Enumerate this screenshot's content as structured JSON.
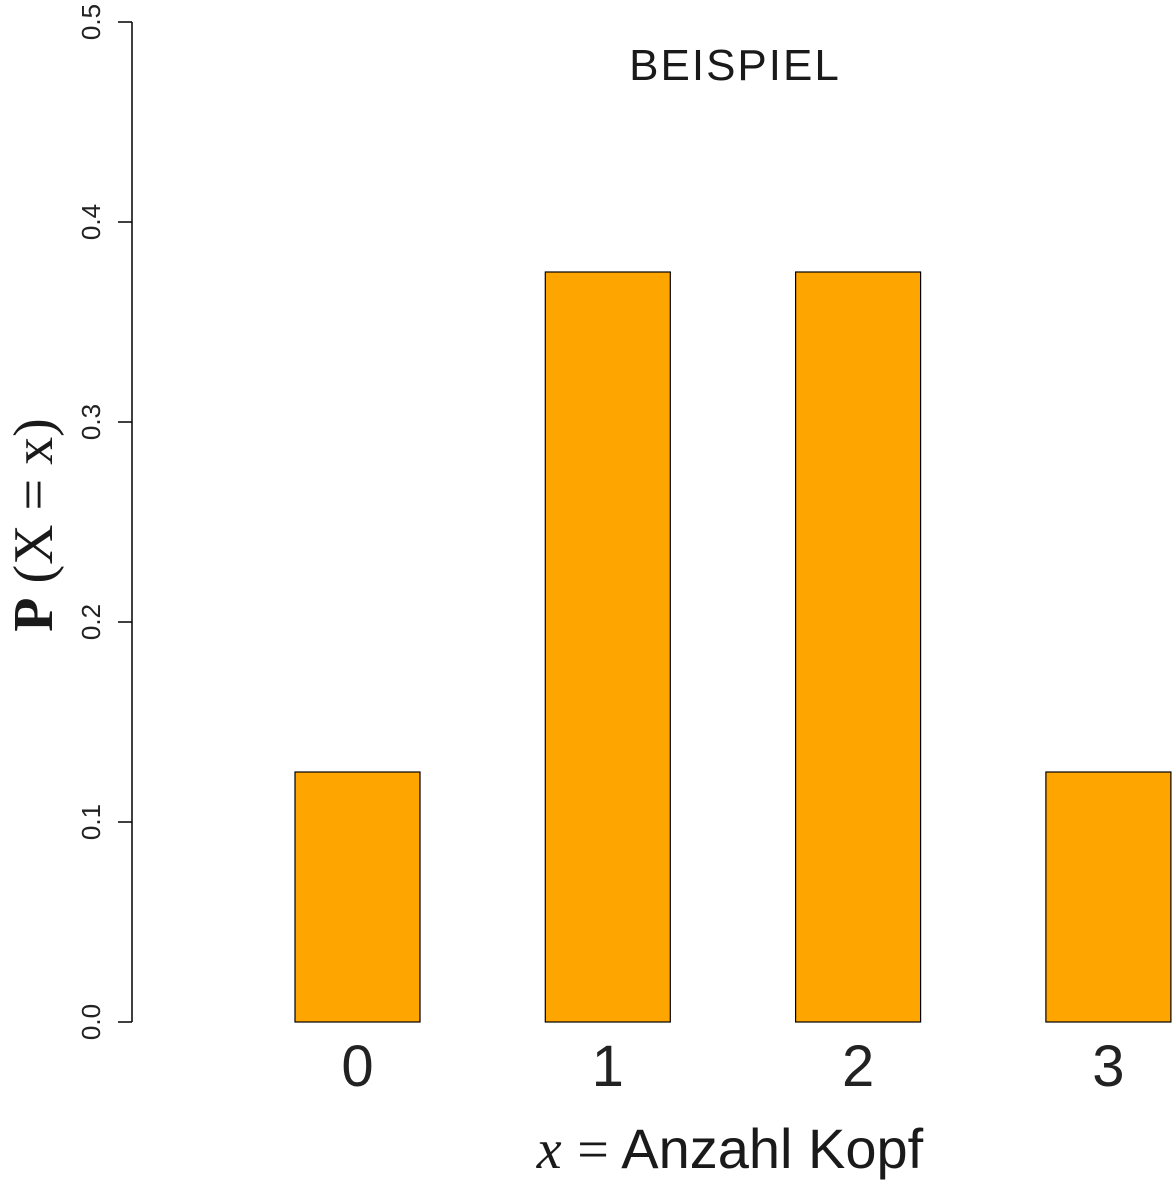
{
  "chart_data": {
    "type": "bar",
    "title": "BEISPIEL",
    "categories": [
      "0",
      "1",
      "2",
      "3"
    ],
    "values": [
      0.125,
      0.375,
      0.375,
      0.125
    ],
    "bar_color": "#FFA500",
    "xlabel": "x = Anzahl Kopf",
    "xlabel_var": "x",
    "xlabel_eq": "=",
    "xlabel_text": "Anzahl Kopf",
    "ylabel": "P(X = x)",
    "ylabel_p": "P",
    "ylabel_rest": "(X = x)",
    "ylim": [
      0,
      0.5
    ],
    "yticks": [
      0.0,
      0.1,
      0.2,
      0.3,
      0.4,
      0.5
    ],
    "ytick_labels": [
      "0.0",
      "0.1",
      "0.2",
      "0.3",
      "0.4",
      "0.5"
    ],
    "grid": false,
    "legend": "none"
  }
}
